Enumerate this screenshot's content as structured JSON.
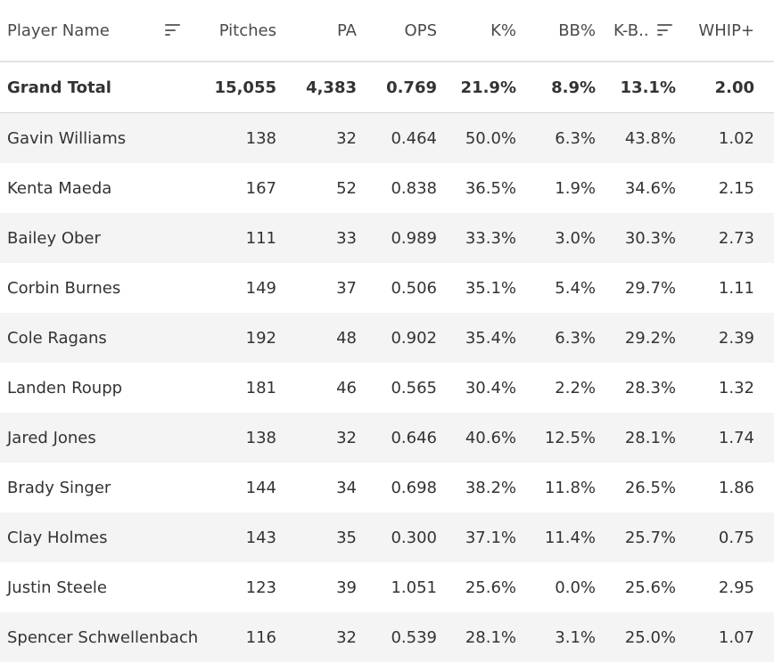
{
  "headers": {
    "player_name": "Player Name",
    "pitches": "Pitches",
    "pa": "PA",
    "ops": "OPS",
    "k_pct": "K%",
    "bb_pct": "BB%",
    "k_bb": "K-B..",
    "whip_plus": "WHIP+"
  },
  "icons": {
    "player_name_sort": "sort-descending-icon",
    "k_bb_sort": "sort-descending-icon"
  },
  "grand_total": {
    "name": "Grand Total",
    "pitches": "15,055",
    "pa": "4,383",
    "ops": "0.769",
    "k_pct": "21.9%",
    "bb_pct": "8.9%",
    "k_bb": "13.1%",
    "whip_plus": "2.00"
  },
  "rows": [
    {
      "name": "Gavin Williams",
      "pitches": "138",
      "pa": "32",
      "ops": "0.464",
      "k_pct": "50.0%",
      "bb_pct": "6.3%",
      "k_bb": "43.8%",
      "whip_plus": "1.02"
    },
    {
      "name": "Kenta Maeda",
      "pitches": "167",
      "pa": "52",
      "ops": "0.838",
      "k_pct": "36.5%",
      "bb_pct": "1.9%",
      "k_bb": "34.6%",
      "whip_plus": "2.15"
    },
    {
      "name": "Bailey Ober",
      "pitches": "111",
      "pa": "33",
      "ops": "0.989",
      "k_pct": "33.3%",
      "bb_pct": "3.0%",
      "k_bb": "30.3%",
      "whip_plus": "2.73"
    },
    {
      "name": "Corbin Burnes",
      "pitches": "149",
      "pa": "37",
      "ops": "0.506",
      "k_pct": "35.1%",
      "bb_pct": "5.4%",
      "k_bb": "29.7%",
      "whip_plus": "1.11"
    },
    {
      "name": "Cole Ragans",
      "pitches": "192",
      "pa": "48",
      "ops": "0.902",
      "k_pct": "35.4%",
      "bb_pct": "6.3%",
      "k_bb": "29.2%",
      "whip_plus": "2.39"
    },
    {
      "name": "Landen Roupp",
      "pitches": "181",
      "pa": "46",
      "ops": "0.565",
      "k_pct": "30.4%",
      "bb_pct": "2.2%",
      "k_bb": "28.3%",
      "whip_plus": "1.32"
    },
    {
      "name": "Jared Jones",
      "pitches": "138",
      "pa": "32",
      "ops": "0.646",
      "k_pct": "40.6%",
      "bb_pct": "12.5%",
      "k_bb": "28.1%",
      "whip_plus": "1.74"
    },
    {
      "name": "Brady Singer",
      "pitches": "144",
      "pa": "34",
      "ops": "0.698",
      "k_pct": "38.2%",
      "bb_pct": "11.8%",
      "k_bb": "26.5%",
      "whip_plus": "1.86"
    },
    {
      "name": "Clay Holmes",
      "pitches": "143",
      "pa": "35",
      "ops": "0.300",
      "k_pct": "37.1%",
      "bb_pct": "11.4%",
      "k_bb": "25.7%",
      "whip_plus": "0.75"
    },
    {
      "name": "Justin Steele",
      "pitches": "123",
      "pa": "39",
      "ops": "1.051",
      "k_pct": "25.6%",
      "bb_pct": "0.0%",
      "k_bb": "25.6%",
      "whip_plus": "2.95"
    },
    {
      "name": "Spencer Schwellenbach",
      "pitches": "116",
      "pa": "32",
      "ops": "0.539",
      "k_pct": "28.1%",
      "bb_pct": "3.1%",
      "k_bb": "25.0%",
      "whip_plus": "1.07"
    }
  ],
  "colors": {
    "text": "#333333",
    "row_alt_bg": "#f4f4f4",
    "border": "#e2e2e2"
  }
}
